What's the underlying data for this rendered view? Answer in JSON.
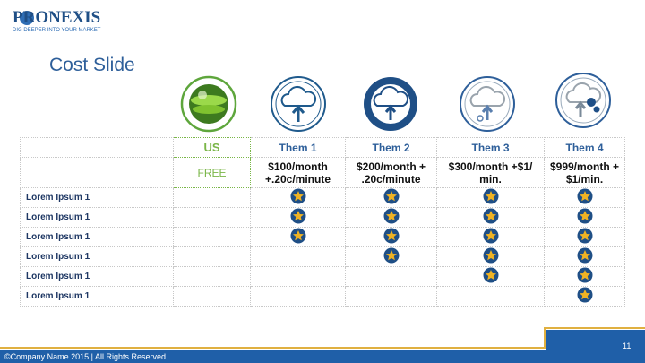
{
  "logo": {
    "name": "PRONEXIS",
    "tagline": "DIG DEEPER INTO YOUR MARKET"
  },
  "title": "Cost Slide",
  "table": {
    "columns": [
      "US",
      "Them 1",
      "Them 2",
      "Them 3",
      "Them 4"
    ],
    "prices": [
      "FREE",
      "$100/month +.20c/minute",
      "$200/month + .20c/minute",
      "$300/month +$1/ min.",
      "$999/month + $1/min."
    ],
    "rows": [
      {
        "label": "Lorem Ipsum 1",
        "stars": [
          false,
          true,
          true,
          true,
          true
        ]
      },
      {
        "label": "Lorem Ipsum 1",
        "stars": [
          false,
          true,
          true,
          true,
          true
        ]
      },
      {
        "label": "Lorem Ipsum 1",
        "stars": [
          false,
          true,
          true,
          true,
          true
        ]
      },
      {
        "label": "Lorem Ipsum 1",
        "stars": [
          false,
          false,
          true,
          true,
          true
        ]
      },
      {
        "label": "Lorem Ipsum 1",
        "stars": [
          false,
          false,
          false,
          true,
          true
        ]
      },
      {
        "label": "Lorem Ipsum 1",
        "stars": [
          false,
          false,
          false,
          false,
          true
        ]
      }
    ]
  },
  "footer": {
    "copyright": "©Company Name 2015 | All Rights Reserved.",
    "page": "11"
  }
}
